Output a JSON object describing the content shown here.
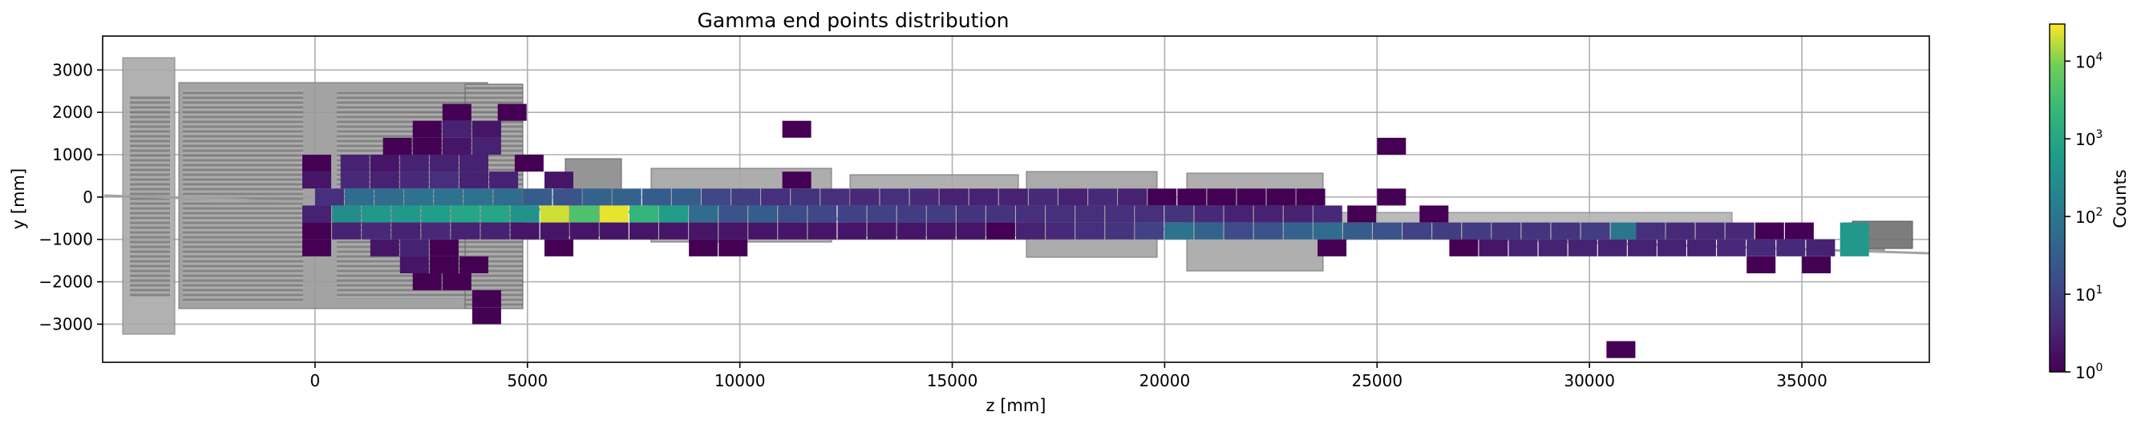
{
  "chart_data": {
    "type": "heatmap",
    "title": "Gamma end points distribution",
    "xlabel": "z [mm]",
    "ylabel": "y [mm]",
    "xlim": [
      -5000,
      38000
    ],
    "ylim": [
      -3900,
      3800
    ],
    "xticks": [
      0,
      5000,
      10000,
      15000,
      20000,
      25000,
      30000,
      35000
    ],
    "yticks": [
      -3000,
      -2000,
      -1000,
      0,
      1000,
      2000,
      3000
    ],
    "grid": true,
    "bin_width": 680,
    "bin_height": 400,
    "colorscale": "viridis",
    "colorbar": {
      "label": "Counts",
      "scale": "log",
      "range": [
        1,
        30000
      ],
      "ticks": [
        "10^0",
        "10^1",
        "10^2",
        "10^3",
        "10^4"
      ]
    },
    "rows": [
      {
        "y": 3800,
        "cells": []
      },
      {
        "y": 3400,
        "cells": []
      },
      {
        "y": 3000,
        "cells": []
      },
      {
        "y": 2600,
        "cells": []
      },
      {
        "y": 2200,
        "cells": [
          [
            3000,
            1
          ],
          [
            4300,
            1
          ]
        ]
      },
      {
        "y": 1800,
        "cells": [
          [
            2300,
            1
          ],
          [
            3000,
            3
          ],
          [
            3700,
            2
          ],
          [
            11000,
            1
          ]
        ]
      },
      {
        "y": 1400,
        "cells": [
          [
            1600,
            1
          ],
          [
            2300,
            1
          ],
          [
            3000,
            2
          ],
          [
            3700,
            3
          ],
          [
            25000,
            1
          ]
        ]
      },
      {
        "y": 1000,
        "cells": [
          [
            -300,
            1
          ],
          [
            600,
            3
          ],
          [
            1300,
            2
          ],
          [
            2000,
            3
          ],
          [
            2700,
            3
          ],
          [
            3400,
            3
          ],
          [
            4700,
            1
          ]
        ]
      },
      {
        "y": 600,
        "cells": [
          [
            -300,
            2
          ],
          [
            600,
            4
          ],
          [
            1300,
            3
          ],
          [
            2000,
            4
          ],
          [
            2700,
            5
          ],
          [
            3400,
            3
          ],
          [
            4100,
            3
          ],
          [
            5400,
            2
          ],
          [
            11000,
            1
          ]
        ]
      },
      {
        "y": 200,
        "cells": [
          [
            0,
            5
          ],
          [
            700,
            60
          ],
          [
            1400,
            60
          ],
          [
            2100,
            80
          ],
          [
            2800,
            80
          ],
          [
            3500,
            80
          ],
          [
            4200,
            60
          ],
          [
            4900,
            30
          ],
          [
            5600,
            20
          ],
          [
            6300,
            40
          ],
          [
            7000,
            40
          ],
          [
            7700,
            30
          ],
          [
            8400,
            30
          ],
          [
            9100,
            12
          ],
          [
            9800,
            8
          ],
          [
            10500,
            5
          ],
          [
            11200,
            6
          ],
          [
            11900,
            5
          ],
          [
            12600,
            4
          ],
          [
            13300,
            5
          ],
          [
            14000,
            4
          ],
          [
            14700,
            3
          ],
          [
            15400,
            3
          ],
          [
            16100,
            3
          ],
          [
            16800,
            4
          ],
          [
            17500,
            3
          ],
          [
            18200,
            4
          ],
          [
            18900,
            3
          ],
          [
            19600,
            1
          ],
          [
            20300,
            1
          ],
          [
            21000,
            1
          ],
          [
            21700,
            1
          ],
          [
            22400,
            1
          ],
          [
            23100,
            1
          ],
          [
            25000,
            1
          ]
        ]
      },
      {
        "y": -200,
        "cells": [
          [
            -300,
            3
          ],
          [
            400,
            300
          ],
          [
            1100,
            500
          ],
          [
            1800,
            500
          ],
          [
            2500,
            700
          ],
          [
            3200,
            1000
          ],
          [
            3900,
            1000
          ],
          [
            4600,
            400
          ],
          [
            5300,
            20000
          ],
          [
            6000,
            4000
          ],
          [
            6700,
            25000
          ],
          [
            7400,
            2000
          ],
          [
            8100,
            600
          ],
          [
            8800,
            60
          ],
          [
            9500,
            20
          ],
          [
            10200,
            30
          ],
          [
            10900,
            15
          ],
          [
            11600,
            12
          ],
          [
            12300,
            10
          ],
          [
            13000,
            10
          ],
          [
            13700,
            8
          ],
          [
            14400,
            8
          ],
          [
            15100,
            6
          ],
          [
            15800,
            6
          ],
          [
            16500,
            5
          ],
          [
            17200,
            5
          ],
          [
            17900,
            5
          ],
          [
            18600,
            5
          ],
          [
            19300,
            5
          ],
          [
            20000,
            6
          ],
          [
            20700,
            4
          ],
          [
            21400,
            3
          ],
          [
            22100,
            3
          ],
          [
            22800,
            3
          ],
          [
            23500,
            4
          ],
          [
            24300,
            1
          ],
          [
            26000,
            1
          ]
        ]
      },
      {
        "y": -600,
        "cells": [
          [
            -300,
            1
          ],
          [
            400,
            3
          ],
          [
            1100,
            4
          ],
          [
            1800,
            3
          ],
          [
            2500,
            4
          ],
          [
            3200,
            3
          ],
          [
            3900,
            3
          ],
          [
            4600,
            2
          ],
          [
            5300,
            2
          ],
          [
            6000,
            2
          ],
          [
            6700,
            2
          ],
          [
            7400,
            2
          ],
          [
            8100,
            2
          ],
          [
            8800,
            2
          ],
          [
            9500,
            2
          ],
          [
            10200,
            2
          ],
          [
            10900,
            2
          ],
          [
            11600,
            2
          ],
          [
            12300,
            2
          ],
          [
            13000,
            2
          ],
          [
            13700,
            2
          ],
          [
            14400,
            2
          ],
          [
            15100,
            2
          ],
          [
            15800,
            1
          ],
          [
            16500,
            3
          ],
          [
            17200,
            4
          ],
          [
            17900,
            5
          ],
          [
            18600,
            6
          ],
          [
            19300,
            10
          ],
          [
            20000,
            80
          ],
          [
            20700,
            40
          ],
          [
            21400,
            15
          ],
          [
            22100,
            20
          ],
          [
            22800,
            40
          ],
          [
            23500,
            60
          ],
          [
            24200,
            30
          ],
          [
            24900,
            20
          ],
          [
            25600,
            10
          ],
          [
            26300,
            8
          ],
          [
            27000,
            8
          ],
          [
            27700,
            6
          ],
          [
            28400,
            6
          ],
          [
            29100,
            6
          ],
          [
            29800,
            8
          ],
          [
            30500,
            100
          ],
          [
            31100,
            5
          ],
          [
            31800,
            4
          ],
          [
            32500,
            4
          ],
          [
            33200,
            4
          ],
          [
            33900,
            1
          ],
          [
            34600,
            1
          ],
          [
            35900,
            500
          ]
        ]
      },
      {
        "y": -1000,
        "cells": [
          [
            -300,
            1
          ],
          [
            1300,
            2
          ],
          [
            2000,
            3
          ],
          [
            2700,
            1
          ],
          [
            5400,
            1
          ],
          [
            8800,
            1
          ],
          [
            9500,
            1
          ],
          [
            23600,
            1
          ],
          [
            26700,
            1
          ],
          [
            27400,
            2
          ],
          [
            28100,
            3
          ],
          [
            28800,
            3
          ],
          [
            29500,
            3
          ],
          [
            30200,
            3
          ],
          [
            30900,
            3
          ],
          [
            31600,
            3
          ],
          [
            32300,
            3
          ],
          [
            33000,
            4
          ],
          [
            33700,
            4
          ],
          [
            34400,
            4
          ],
          [
            35100,
            3
          ],
          [
            35900,
            500
          ]
        ]
      },
      {
        "y": -1400,
        "cells": [
          [
            2000,
            2
          ],
          [
            2700,
            1
          ],
          [
            3400,
            1
          ],
          [
            33700,
            1
          ],
          [
            35000,
            1
          ]
        ]
      },
      {
        "y": -1800,
        "cells": [
          [
            2300,
            1
          ],
          [
            3000,
            1
          ]
        ]
      },
      {
        "y": -2200,
        "cells": [
          [
            3700,
            1
          ]
        ]
      },
      {
        "y": -2600,
        "cells": [
          [
            3700,
            1
          ]
        ]
      },
      {
        "y": -3400,
        "cells": [
          [
            30400,
            1
          ]
        ]
      }
    ]
  }
}
